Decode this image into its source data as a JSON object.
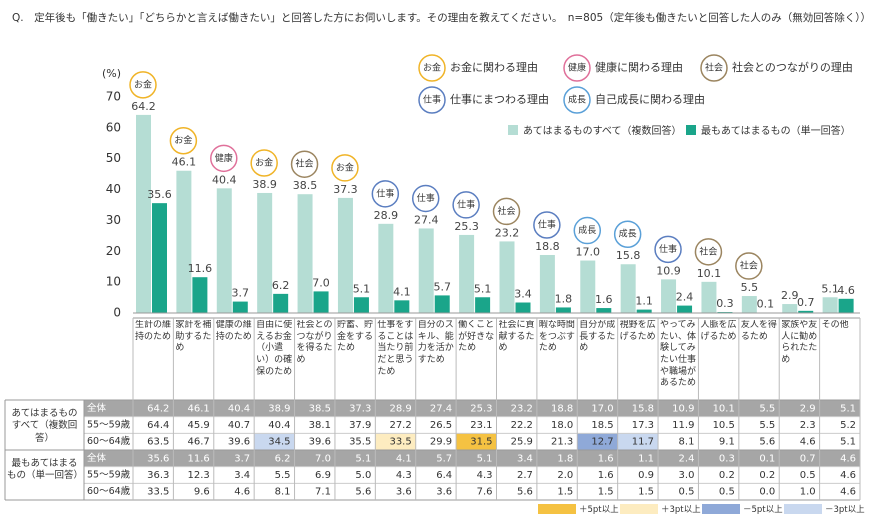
{
  "title": "Q.　定年後も「働きたい」「どちらかと言えば働きたい」と回答した方にお伺いします。その理由を教えてください。　n=805（定年後も働きたいと回答した人のみ（無効回答除く））",
  "chart_data": {
    "type": "bar",
    "y_label": "(%)",
    "categories": [
      "生計の維持のため",
      "家計を補助するため",
      "健康の維持のため",
      "自由に使えるお金（小遣い）の確保のため",
      "社会とのつながりを得るため",
      "貯蓄、貯金をするため",
      "仕事をすることは当たり前だと思うため",
      "自分のスキル、能力を活かすため",
      "働くことが好きなため",
      "社会に貢献するため",
      "暇な時間をつぶすため",
      "自分が成長するため",
      "視野を広げるため",
      "やってみたい、体験してみたい仕事や職場があるため",
      "人脈を広げるため",
      "友人を得るため",
      "家族や友人に勧められたため",
      "その他"
    ],
    "ylim": [
      0,
      70
    ],
    "yticks": [
      0,
      10,
      20,
      30,
      40,
      50,
      60,
      70
    ],
    "series": [
      {
        "name": "あてはまるものすべて（複数回答）",
        "color": "#b5ddd4",
        "values": [
          64.2,
          46.1,
          40.4,
          38.9,
          38.5,
          37.3,
          28.9,
          27.4,
          25.3,
          23.2,
          18.8,
          17.0,
          15.8,
          10.9,
          10.1,
          5.5,
          2.9,
          5.1
        ],
        "value_labels": [
          "64.2",
          "46.1",
          "40.4",
          "38.9",
          "38.5",
          "37.3",
          "28.9",
          "27.4",
          "25.3",
          "23.2",
          "18.8",
          "17.0",
          "15.8",
          "10.9",
          "10.1",
          "5.5",
          "2.9",
          "5.1"
        ]
      },
      {
        "name": "最もあてはまるもの（単一回答）",
        "color": "#1aa58a",
        "values": [
          35.6,
          11.6,
          3.7,
          6.2,
          7.0,
          5.1,
          4.1,
          5.7,
          5.1,
          3.4,
          1.8,
          1.6,
          1.1,
          2.4,
          0.3,
          0.1,
          0.7,
          4.6
        ],
        "value_labels": [
          "35.6",
          "11.6",
          "3.7",
          "6.2",
          "7.0",
          "5.1",
          "4.1",
          "5.7",
          "5.1",
          "3.4",
          "1.8",
          "1.6",
          "1.1",
          "2.4",
          "0.3",
          "0.1",
          "0.7",
          "4.6"
        ]
      }
    ],
    "badges": [
      "お金",
      "お金",
      "健康",
      "お金",
      "社会",
      "お金",
      "仕事",
      "仕事",
      "仕事",
      "社会",
      "仕事",
      "成長",
      "成長",
      "仕事",
      "社会",
      "社会",
      null,
      null
    ],
    "badge_legend": [
      {
        "badge": "お金",
        "label": "お金に関わる理由",
        "color": "#f0b428"
      },
      {
        "badge": "健康",
        "label": "健康に関わる理由",
        "color": "#e0709a"
      },
      {
        "badge": "社会",
        "label": "社会とのつながりの理由",
        "color": "#9b8560"
      },
      {
        "badge": "仕事",
        "label": "仕事にまつわる理由",
        "color": "#5b7ec0"
      },
      {
        "badge": "成長",
        "label": "自己成長に関わる理由",
        "color": "#5aa0d8"
      }
    ]
  },
  "table": {
    "groups": [
      {
        "label": "あてはまるものすべて（複数回答）",
        "rows": [
          {
            "label": "全体",
            "values": [
              "64.2",
              "46.1",
              "40.4",
              "38.9",
              "38.5",
              "37.3",
              "28.9",
              "27.4",
              "25.3",
              "23.2",
              "18.8",
              "17.0",
              "15.8",
              "10.9",
              "10.1",
              "5.5",
              "2.9",
              "5.1"
            ]
          },
          {
            "label": "55～59歳",
            "values": [
              "64.4",
              "45.9",
              "40.7",
              "40.4",
              "38.1",
              "37.9",
              "27.2",
              "26.5",
              "23.1",
              "22.2",
              "18.0",
              "18.5",
              "17.3",
              "11.9",
              "10.5",
              "5.5",
              "2.3",
              "5.2"
            ]
          },
          {
            "label": "60～64歳",
            "values": [
              "63.5",
              "46.7",
              "39.6",
              "34.5",
              "39.6",
              "35.5",
              "33.5",
              "29.9",
              "31.5",
              "25.9",
              "21.3",
              "12.7",
              "11.7",
              "8.1",
              "9.1",
              "5.6",
              "4.6",
              "5.1"
            ],
            "highlight": [
              null,
              null,
              null,
              3,
              null,
              null,
              1,
              null,
              0,
              null,
              null,
              2,
              3,
              null,
              null,
              null,
              null,
              null
            ]
          }
        ]
      },
      {
        "label": "最もあてはまるもの（単一回答）",
        "rows": [
          {
            "label": "全体",
            "values": [
              "35.6",
              "11.6",
              "3.7",
              "6.2",
              "7.0",
              "5.1",
              "4.1",
              "5.7",
              "5.1",
              "3.4",
              "1.8",
              "1.6",
              "1.1",
              "2.4",
              "0.3",
              "0.1",
              "0.7",
              "4.6"
            ]
          },
          {
            "label": "55～59歳",
            "values": [
              "36.3",
              "12.3",
              "3.4",
              "5.5",
              "6.9",
              "5.0",
              "4.3",
              "6.4",
              "4.3",
              "2.7",
              "2.0",
              "1.6",
              "0.9",
              "3.0",
              "0.2",
              "0.2",
              "0.5",
              "4.6"
            ]
          },
          {
            "label": "60～64歳",
            "values": [
              "33.5",
              "9.6",
              "4.6",
              "8.1",
              "7.1",
              "5.6",
              "3.6",
              "3.6",
              "7.6",
              "5.6",
              "1.5",
              "1.5",
              "1.5",
              "0.5",
              "0.5",
              "0.0",
              "1.0",
              "4.6"
            ]
          }
        ]
      }
    ],
    "highlight_legend": [
      {
        "label": "＋5pt以上",
        "color": "#f5c242"
      },
      {
        "label": "＋3pt以上",
        "color": "#fdecc0"
      },
      {
        "label": "－5pt以上",
        "color": "#8fa9d8"
      },
      {
        "label": "－3pt以上",
        "color": "#c9d8ef"
      }
    ]
  }
}
